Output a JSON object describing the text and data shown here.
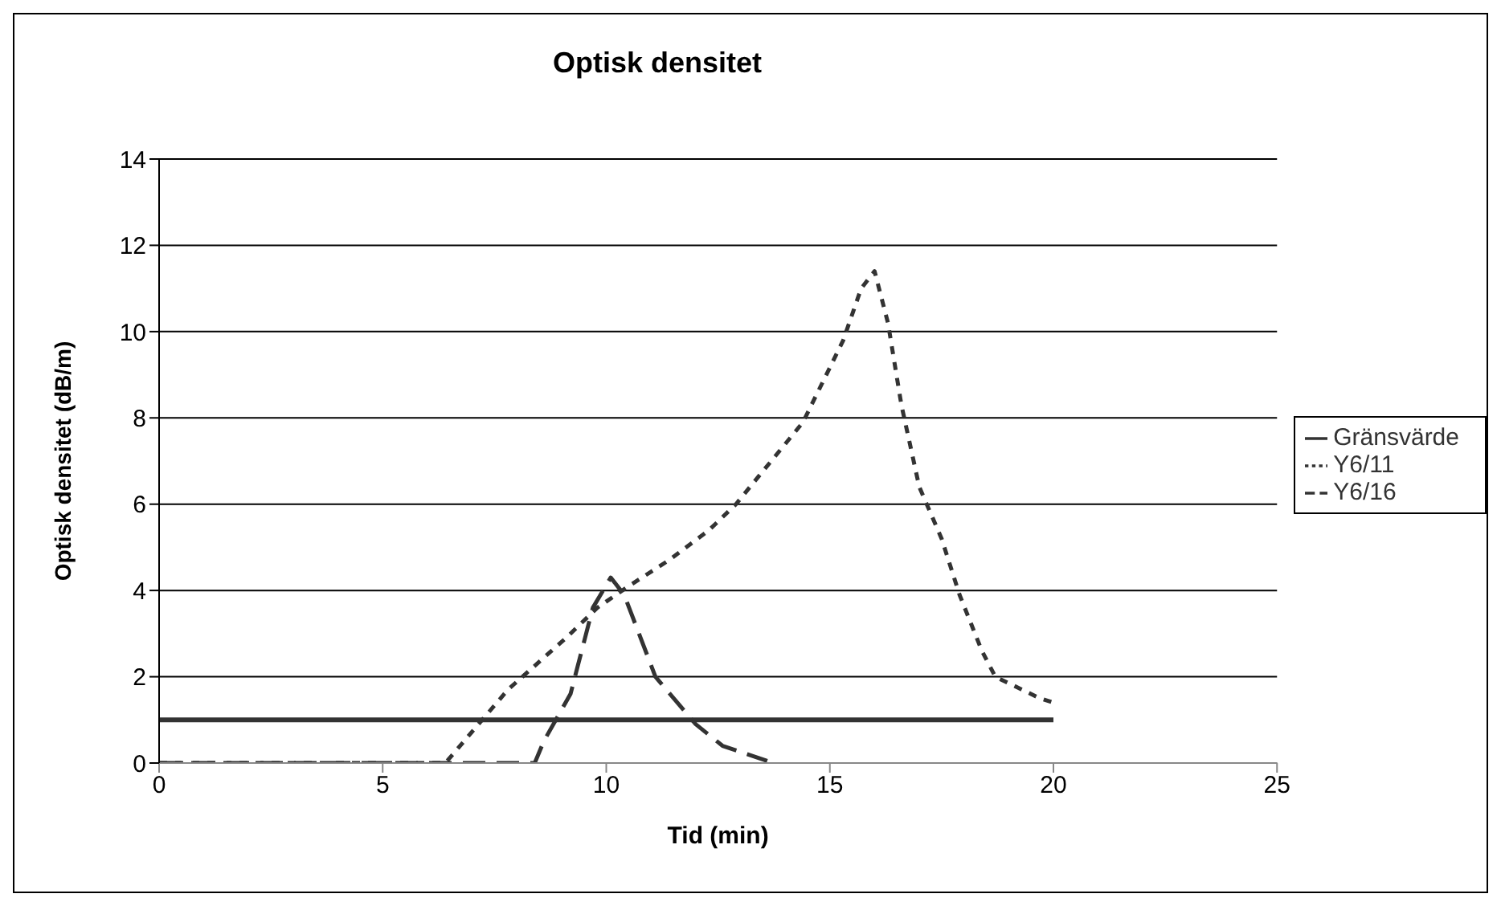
{
  "chart_data": {
    "type": "line",
    "title": "Optisk densitet",
    "xlabel": "Tid (min)",
    "ylabel": "Optisk densitet (dB/m)",
    "xlim": [
      0,
      25
    ],
    "xticks": [
      0,
      5,
      10,
      15,
      20,
      25
    ],
    "ylim": [
      0,
      14
    ],
    "yticks": [
      0,
      2,
      4,
      6,
      8,
      10,
      12,
      14
    ],
    "grid": "y",
    "legend": "right",
    "marker": "none",
    "series": [
      {
        "name": "Y6/16",
        "color": "#333333",
        "line_style": "dashed",
        "x": [
          0,
          8.4,
          8.6,
          9.2,
          9.7,
          10.1,
          10.4,
          11.1,
          12,
          12.6,
          13.6
        ],
        "values": [
          0,
          0,
          0.5,
          1.6,
          3.6,
          4.3,
          3.9,
          2.0,
          0.9,
          0.4,
          0.05
        ]
      },
      {
        "name": "Y6/11",
        "color": "#333333",
        "line_style": "dotted",
        "x": [
          0,
          6.4,
          6.65,
          7.8,
          9.1,
          9.8,
          10.5,
          11.4,
          12.3,
          12.9,
          14.4,
          15.3,
          15.7,
          16,
          16.3,
          16.6,
          17,
          17.5,
          17.9,
          18.4,
          18.7,
          19.7,
          20
        ],
        "values": [
          0,
          0,
          0.3,
          1.7,
          2.9,
          3.6,
          4.1,
          4.7,
          5.4,
          6.0,
          7.9,
          9.8,
          11.0,
          11.4,
          10.2,
          8.3,
          6.4,
          5.2,
          3.9,
          2.6,
          2.0,
          1.5,
          1.4
        ]
      },
      {
        "name": "Gränsvärde",
        "color": "#333333",
        "line_style": "solid",
        "x": [
          0,
          20
        ],
        "values": [
          1,
          1
        ]
      }
    ]
  }
}
